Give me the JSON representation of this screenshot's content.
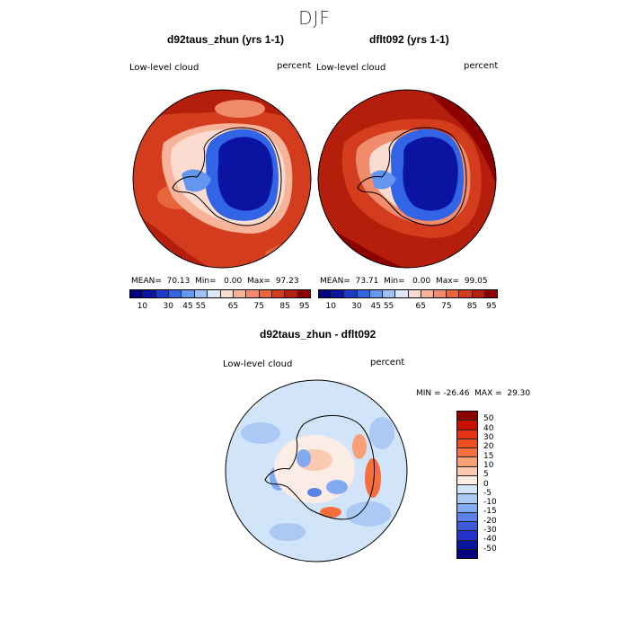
{
  "title": "DJF",
  "panel1": {
    "title": "d92taus_zhun (yrs 1-1)",
    "variable": "Low-level cloud",
    "units": "percent",
    "stats": "MEAN=  70.13  Min=   0.00  Max=  97.23"
  },
  "panel2": {
    "title": "dflt092 (yrs 1-1)",
    "variable": "Low-level cloud",
    "units": "percent",
    "stats": "MEAN=  73.71  Min=   0.00  Max=  99.05"
  },
  "panel3": {
    "title": "d92taus_zhun - dflt092",
    "variable": "Low-level cloud",
    "units": "percent",
    "stats": "MIN = -26.46  MAX =  29.30"
  },
  "colorbar_top": {
    "colors": [
      "#000080",
      "#0a14a0",
      "#1e3cc8",
      "#3264e6",
      "#6496f0",
      "#a0c0f8",
      "#dce8fa",
      "#fcdcd0",
      "#f8b49a",
      "#f08c6c",
      "#e8643c",
      "#d43c1e",
      "#b41e0a",
      "#8c0000"
    ],
    "labels": [
      "10",
      "30",
      "45",
      "55",
      "65",
      "75",
      "85",
      "95"
    ]
  },
  "colorbar_diff": {
    "colors": [
      "#8c0000",
      "#c80f00",
      "#e63214",
      "#f0501e",
      "#f56e3c",
      "#f8a078",
      "#fcc8b0",
      "#fbece6",
      "#d2e4fa",
      "#aacaf5",
      "#82aaf0",
      "#5a82e6",
      "#3c5adc",
      "#2332c8",
      "#0a14a0",
      "#000080"
    ],
    "labels": [
      "50",
      "40",
      "30",
      "20",
      "15",
      "10",
      "5",
      "0",
      "-5",
      "-10",
      "-15",
      "-20",
      "-30",
      "-40",
      "-50"
    ]
  },
  "chart_data": [
    {
      "type": "heatmap",
      "title": "d92taus_zhun (yrs 1-1)",
      "variable": "Low-level cloud",
      "units": "percent",
      "projection": "south polar stereographic",
      "mean": 70.13,
      "min": 0.0,
      "max": 97.23,
      "contour_levels": [
        10,
        30,
        45,
        55,
        65,
        75,
        85,
        95
      ]
    },
    {
      "type": "heatmap",
      "title": "dflt092 (yrs 1-1)",
      "variable": "Low-level cloud",
      "units": "percent",
      "projection": "south polar stereographic",
      "mean": 73.71,
      "min": 0.0,
      "max": 99.05,
      "contour_levels": [
        10,
        30,
        45,
        55,
        65,
        75,
        85,
        95
      ]
    },
    {
      "type": "heatmap",
      "title": "d92taus_zhun - dflt092",
      "variable": "Low-level cloud",
      "units": "percent",
      "projection": "south polar stereographic",
      "min": -26.46,
      "max": 29.3,
      "contour_levels": [
        -50,
        -40,
        -30,
        -20,
        -15,
        -10,
        -5,
        0,
        5,
        10,
        15,
        20,
        30,
        40,
        50
      ]
    }
  ]
}
